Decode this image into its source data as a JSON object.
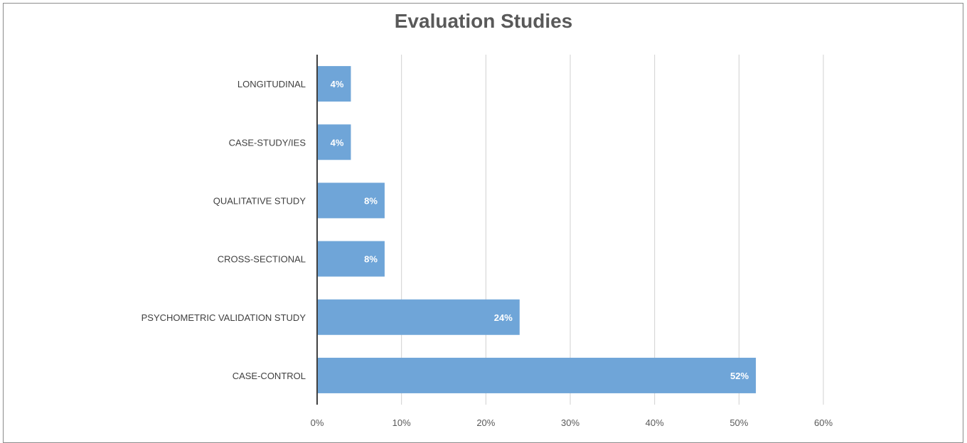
{
  "chart_data": {
    "type": "bar",
    "orientation": "horizontal",
    "title": "Evaluation Studies",
    "xlabel": "",
    "ylabel": "",
    "categories": [
      "LONGITUDINAL",
      "CASE-STUDY/IES",
      "QUALITATIVE STUDY",
      "CROSS-SECTIONAL",
      "PSYCHOMETRIC VALIDATION STUDY",
      "CASE-CONTROL"
    ],
    "values": [
      4,
      4,
      8,
      8,
      24,
      52
    ],
    "data_labels": [
      "4%",
      "4%",
      "8%",
      "8%",
      "24%",
      "52%"
    ],
    "x_ticks": [
      "0%",
      "10%",
      "20%",
      "30%",
      "40%",
      "50%",
      "60%"
    ],
    "xlim": [
      0,
      60
    ],
    "grid": "vertical",
    "legend": "none",
    "bar_color": "#6fa5d8",
    "label_color": "#ffffff"
  }
}
